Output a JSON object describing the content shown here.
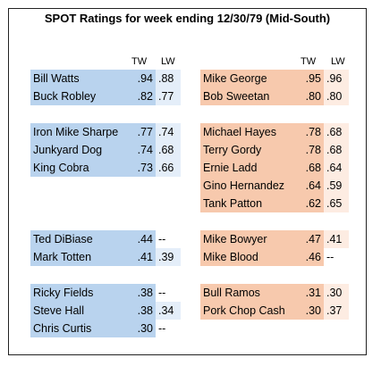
{
  "title": "SPOT Ratings for week ending 12/30/79 (Mid-South)",
  "headers": {
    "tw": "TW",
    "lw": "LW"
  },
  "left_groups": [
    [
      {
        "name": "Bill Watts",
        "tw": ".94",
        "lw": ".88"
      },
      {
        "name": "Buck Robley",
        "tw": ".82",
        "lw": ".77"
      }
    ],
    [
      {
        "name": "Iron Mike Sharpe",
        "tw": ".77",
        "lw": ".74"
      },
      {
        "name": "Junkyard Dog",
        "tw": ".74",
        "lw": ".68"
      },
      {
        "name": "King Cobra",
        "tw": ".73",
        "lw": ".66"
      }
    ],
    [
      {
        "name": "Ted DiBiase",
        "tw": ".44",
        "lw": "--"
      },
      {
        "name": "Mark Totten",
        "tw": ".41",
        "lw": ".39"
      }
    ],
    [
      {
        "name": "Ricky Fields",
        "tw": ".38",
        "lw": "--"
      },
      {
        "name": "Steve Hall",
        "tw": ".38",
        "lw": ".34"
      },
      {
        "name": "Chris Curtis",
        "tw": ".30",
        "lw": "--"
      }
    ]
  ],
  "right_groups": [
    [
      {
        "name": "Mike George",
        "tw": ".95",
        "lw": ".96"
      },
      {
        "name": "Bob Sweetan",
        "tw": ".80",
        "lw": ".80"
      }
    ],
    [
      {
        "name": "Michael Hayes",
        "tw": ".78",
        "lw": ".68"
      },
      {
        "name": "Terry Gordy",
        "tw": ".78",
        "lw": ".68"
      },
      {
        "name": "Ernie Ladd",
        "tw": ".68",
        "lw": ".64"
      },
      {
        "name": "Gino Hernandez",
        "tw": ".64",
        "lw": ".59"
      },
      {
        "name": "Tank Patton",
        "tw": ".62",
        "lw": ".65"
      }
    ],
    [
      {
        "name": "Mike Bowyer",
        "tw": ".47",
        "lw": ".41"
      },
      {
        "name": "Mike Blood",
        "tw": ".46",
        "lw": "--"
      }
    ],
    [
      {
        "name": "Bull Ramos",
        "tw": ".31",
        "lw": ".30"
      },
      {
        "name": "Pork Chop Cash",
        "tw": ".30",
        "lw": ".37"
      }
    ]
  ]
}
